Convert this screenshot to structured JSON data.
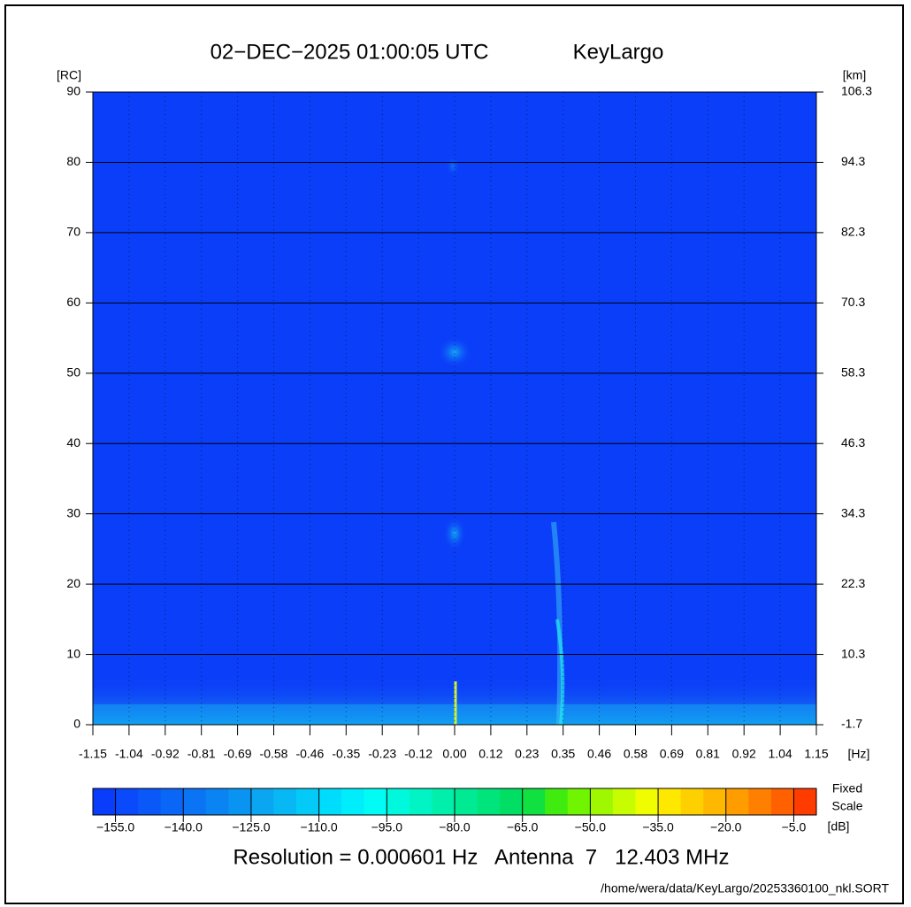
{
  "chart_data": {
    "type": "heatmap",
    "title": "02−DEC−2025 01:00:05 UTC",
    "station": "KeyLargo",
    "y_label": "[RC]",
    "y2_label": "[km]",
    "x_label": "[Hz]",
    "xlim": [
      -1.15,
      1.15
    ],
    "xticks": [
      -1.15,
      {
        "value": -1.035,
        "label": "-1.04"
      },
      -0.92,
      {
        "value": -0.805,
        "label": "-0.81"
      },
      -0.69,
      {
        "value": -0.575,
        "label": "-0.58"
      },
      -0.46,
      {
        "value": -0.345,
        "label": "-0.35"
      },
      -0.23,
      {
        "value": -0.115,
        "label": "-0.12"
      },
      {
        "value": 0,
        "label": "0.00"
      },
      {
        "value": 0.115,
        "label": "0.12"
      },
      0.23,
      {
        "value": 0.345,
        "label": "0.35"
      },
      0.46,
      {
        "value": 0.575,
        "label": "0.58"
      },
      0.69,
      {
        "value": 0.805,
        "label": "0.81"
      },
      0.92,
      {
        "value": 1.035,
        "label": "1.04"
      },
      1.15
    ],
    "ylim": [
      0,
      90
    ],
    "yticks": [
      0,
      10,
      20,
      30,
      40,
      50,
      60,
      70,
      80,
      90
    ],
    "y2lim": [
      -1.7,
      106.3
    ],
    "y2ticks": [
      -1.7,
      10.3,
      22.3,
      34.3,
      46.3,
      58.3,
      70.3,
      82.3,
      94.3,
      106.3
    ],
    "grid": true,
    "background_color": "#0b3ef8",
    "colorbar": {
      "label_1": "Fixed",
      "label_2": "Scale",
      "unit": "[dB]",
      "clim": [
        -160,
        0
      ],
      "ticks": [
        {
          "value": -155,
          "label": "−155.0"
        },
        {
          "value": -140,
          "label": "−140.0"
        },
        {
          "value": -125,
          "label": "−125.0"
        },
        {
          "value": -110,
          "label": "−110.0"
        },
        {
          "value": -95,
          "label": "−95.0"
        },
        {
          "value": -80,
          "label": "−80.0"
        },
        {
          "value": -65,
          "label": "−65.0"
        },
        {
          "value": -50,
          "label": "−50.0"
        },
        {
          "value": -35,
          "label": "−35.0"
        },
        {
          "value": -20,
          "label": "−20.0"
        },
        {
          "value": -5,
          "label": "−5.0"
        }
      ],
      "colors": [
        "#0a3cfc",
        "#0a4afa",
        "#0a58f8",
        "#0a66f6",
        "#0a74f4",
        "#0a84f2",
        "#0a94f2",
        "#0aa6f2",
        "#08b8f4",
        "#04caf8",
        "#00dcfc",
        "#00eefc",
        "#00fcf4",
        "#00f8dc",
        "#00f4c4",
        "#00f0ac",
        "#00ea94",
        "#00e47c",
        "#00de64",
        "#10e040",
        "#40ec10",
        "#70f400",
        "#a0f800",
        "#c8fc00",
        "#f0fc00",
        "#ffe800",
        "#ffd000",
        "#ffb800",
        "#ff9c00",
        "#ff8000",
        "#ff6000",
        "#ff3c00"
      ]
    },
    "footer": "Resolution = 0.000601 Hz   Antenna  7   12.403 MHz",
    "file_path": "/home/wera/data/KeyLargo/20253360100_nkl.SORT"
  }
}
